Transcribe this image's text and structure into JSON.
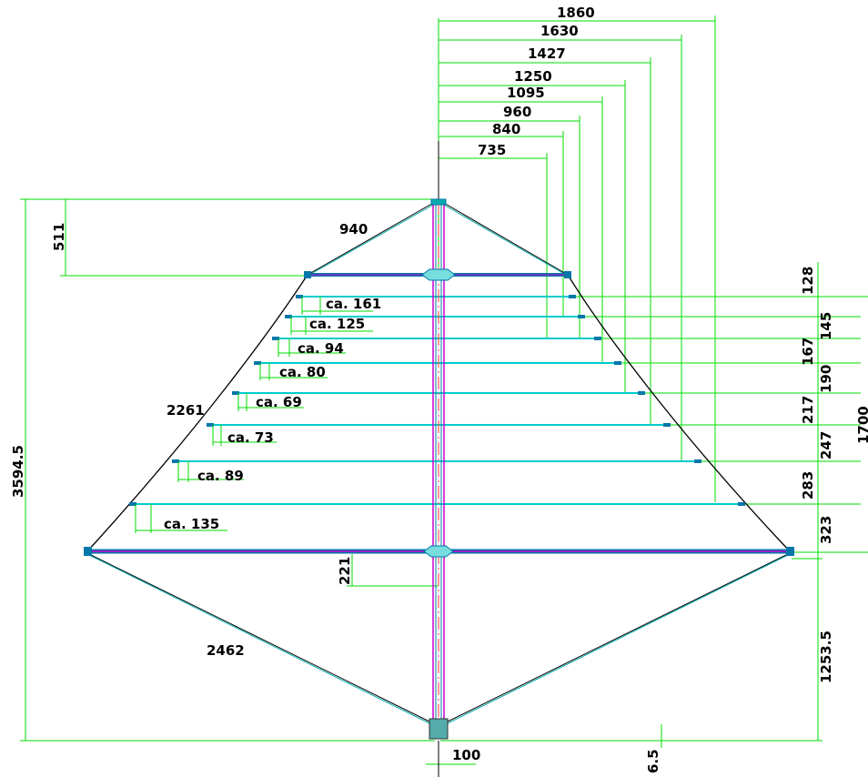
{
  "colors": {
    "dimension": "#00dd00",
    "outline": "#000000",
    "batten": "#00cccc",
    "mast": "#cc00cc",
    "mast_center": "#ff3333",
    "fitting": "#0077aa"
  },
  "dimensions": {
    "top_widths": [
      "1860",
      "1630",
      "1427",
      "1250",
      "1095",
      "960",
      "840",
      "735"
    ],
    "head_diagonal": "940",
    "head_drop": "511",
    "total_height": "3594.5",
    "leech_curve": "2261",
    "foot_diagonal": "2462",
    "boom_drop": "221",
    "mast_width": "100",
    "foot_offset": "6.5",
    "lower_height": "1253.5",
    "upper_height": "1700",
    "batten_spacings": [
      "128",
      "145",
      "167",
      "190",
      "217",
      "247",
      "283",
      "323"
    ],
    "batten_offsets": [
      "ca. 161",
      "ca. 125",
      "ca. 94",
      "ca. 80",
      "ca. 69",
      "ca. 73",
      "ca. 89",
      "ca. 135"
    ]
  }
}
